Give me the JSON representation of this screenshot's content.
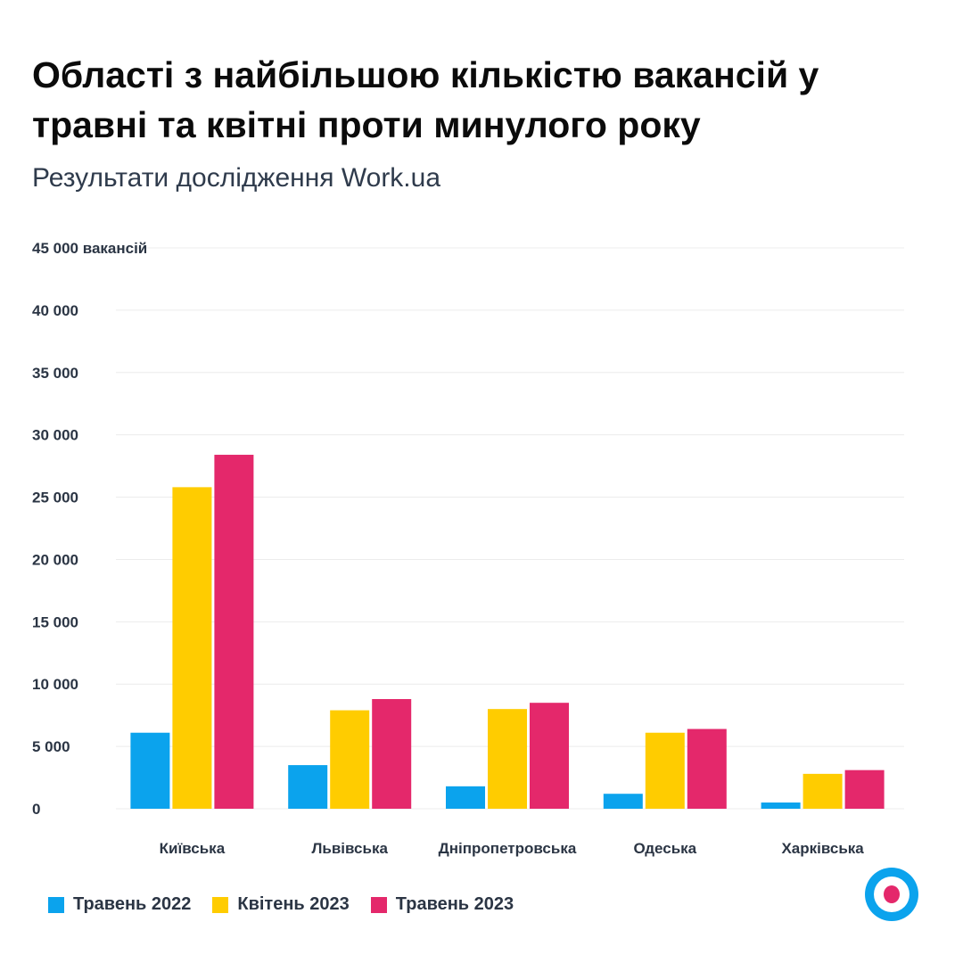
{
  "header": {
    "title": "Області з найбільшою кількістю вакансій у травні та квітні проти минулого року",
    "subtitle": "Результати дослідження Work.ua"
  },
  "logo": {
    "icon": "work-ua-logo-icon",
    "colors": [
      "#0ba3ed",
      "#ffffff",
      "#e4286b"
    ]
  },
  "chart_data": {
    "type": "bar",
    "categories": [
      "Київська",
      "Львівська",
      "Дніпропетровська",
      "Одеська",
      "Харківська"
    ],
    "series": [
      {
        "name": "Травень 2022",
        "color": "#0ba3ed",
        "values": [
          6100,
          3500,
          1800,
          1200,
          500
        ]
      },
      {
        "name": "Квітень 2023",
        "color": "#ffcc00",
        "values": [
          25800,
          7900,
          8000,
          6100,
          2800
        ]
      },
      {
        "name": "Травень 2023",
        "color": "#e4286b",
        "values": [
          28400,
          8800,
          8500,
          6400,
          3100
        ]
      }
    ],
    "ylim": [
      0,
      45000
    ],
    "yticks": [
      0,
      5000,
      10000,
      15000,
      20000,
      25000,
      30000,
      35000,
      40000,
      45000
    ],
    "ytick_labels": [
      "0",
      "5 000",
      "10 000",
      "15 000",
      "20 000",
      "25 000",
      "30 000",
      "35 000",
      "40 000",
      "45 000 вакансій"
    ],
    "grid": true,
    "legend_position": "bottom-left"
  }
}
